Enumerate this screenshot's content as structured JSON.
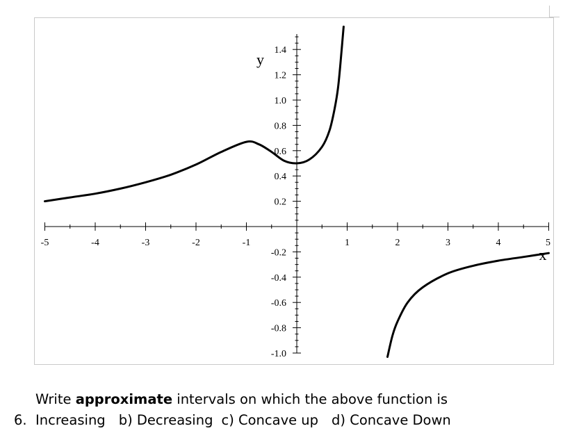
{
  "chart_data": {
    "type": "line",
    "title": "",
    "xlabel": "x",
    "ylabel": "y",
    "xlim": [
      -5,
      5
    ],
    "ylim": [
      -1.0,
      1.5
    ],
    "x_ticks": [
      -5,
      -4,
      -3,
      -2,
      -1,
      1,
      2,
      3,
      4,
      5
    ],
    "x_tick_labels": [
      "-5",
      "-4",
      "-3",
      "-2",
      "-1",
      "1",
      "2",
      "3",
      "4",
      "5"
    ],
    "y_ticks": [
      1.4,
      1.2,
      1.0,
      0.8,
      0.6,
      0.4,
      0.2,
      -0.2,
      -0.4,
      -0.6,
      -0.8,
      -1.0
    ],
    "y_tick_labels": [
      "1.4",
      "1.2",
      "1.0",
      "0.8",
      "0.6",
      "0.4",
      "0.2",
      "-0.2",
      "-0.4",
      "-0.6",
      "-0.8",
      "-1.0"
    ],
    "vertical_asymptote_x": 1,
    "grid": false,
    "series": [
      {
        "branch": "left",
        "color": "#000000",
        "x": [
          -5,
          -4.5,
          -4,
          -3.5,
          -3,
          -2.5,
          -2,
          -1.5,
          -1,
          -0.75,
          -0.5,
          -0.25,
          0,
          0.25,
          0.5,
          0.65,
          0.75,
          0.82,
          0.88,
          0.93
        ],
        "y": [
          0.2,
          0.23,
          0.26,
          0.3,
          0.35,
          0.41,
          0.49,
          0.59,
          0.67,
          0.65,
          0.59,
          0.52,
          0.5,
          0.53,
          0.63,
          0.76,
          0.93,
          1.1,
          1.35,
          1.58
        ]
      },
      {
        "branch": "right",
        "color": "#000000",
        "x": [
          1.8,
          1.9,
          2.0,
          2.2,
          2.5,
          3.0,
          3.5,
          4.0,
          4.5,
          5.0
        ],
        "y": [
          -1.03,
          -0.86,
          -0.75,
          -0.6,
          -0.48,
          -0.37,
          -0.31,
          -0.27,
          -0.24,
          -0.21
        ]
      }
    ]
  },
  "question": {
    "number": "6.",
    "intro_before": "Write ",
    "intro_bold": "approximate",
    "intro_after": " intervals on which the above function is",
    "part_a": "Increasing",
    "part_b": "b) Decreasing",
    "part_c": "c) Concave up",
    "part_d": "d) Concave Down"
  }
}
